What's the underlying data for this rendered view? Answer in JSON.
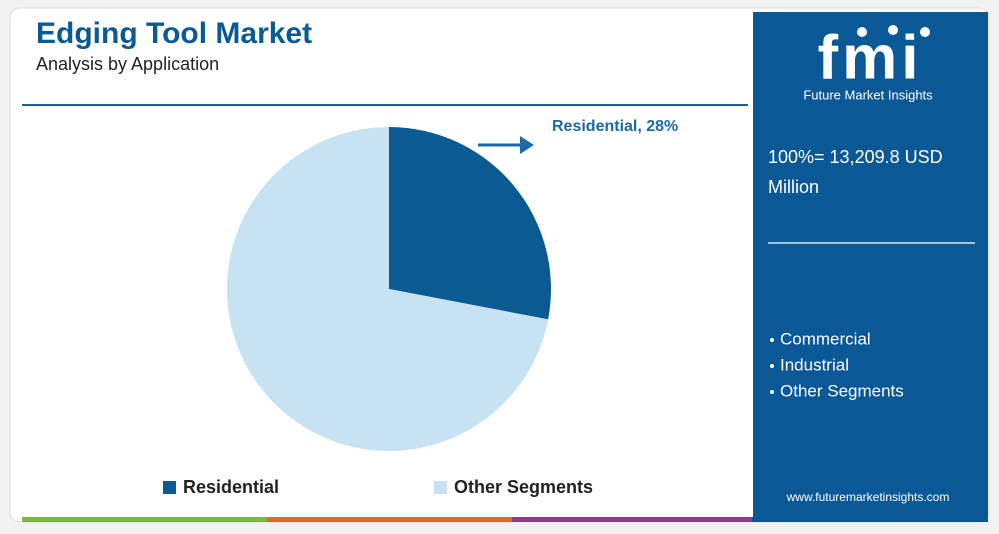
{
  "chart_data": {
    "type": "pie",
    "title": "Edging Tool Market",
    "subtitle": "Analysis by Application",
    "categories": [
      "Residential",
      "Other Segments"
    ],
    "values": [
      28,
      72
    ],
    "value_labels": [
      "Residential, 28%",
      null
    ],
    "colors": [
      "#0b5a91",
      "#c6e2f3"
    ],
    "legend": "bottom"
  },
  "side_panel": {
    "logo": "fmi",
    "brand": "Future Market Insights",
    "total": "100%= 13,209.8 USD Million",
    "segments": [
      "Commercial",
      "Industrial",
      "Other Segments"
    ],
    "website": "www.futuremarketinsights.com"
  }
}
